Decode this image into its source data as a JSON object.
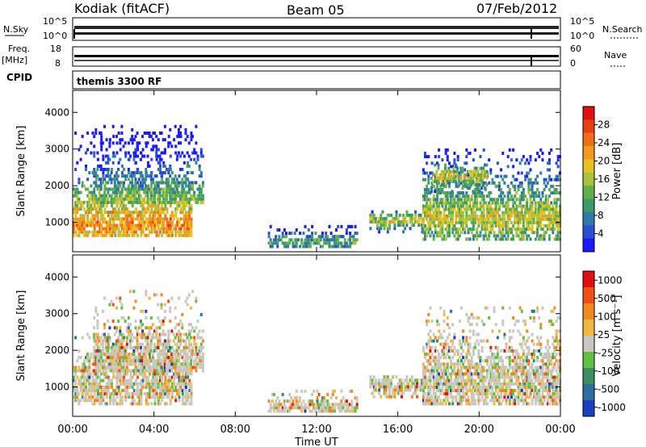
{
  "header": {
    "station": "Kodiak (fitACF)",
    "beam": "Beam 05",
    "date": "07/Feb/2012"
  },
  "top_panels": {
    "nsky_label": "N.Sky",
    "nsky_ticks": [
      "10^5",
      "10^0"
    ],
    "nsearch_label": "N.Search",
    "nsearch_ticks": [
      "10^5",
      "10^0"
    ],
    "freq_label": "Freq.",
    "freq_unit": "[MHz]",
    "freq_ticks": [
      "18",
      "8"
    ],
    "nave_label": "Nave",
    "nave_ticks": [
      "60",
      "0"
    ],
    "cpid_label": "CPID",
    "cpid_value": "themis 3300 RF"
  },
  "chart_data": [
    {
      "type": "heatmap",
      "name": "power-panel",
      "ylabel": "Slant Range [km]",
      "x_ticks": [
        "00:00",
        "04:00",
        "08:00",
        "12:00",
        "16:00",
        "20:00",
        "00:00"
      ],
      "x_range_hours": [
        0,
        24
      ],
      "y_ticks": [
        1000,
        2000,
        3000,
        4000
      ],
      "ylim": [
        200,
        4600
      ],
      "colorbar": {
        "label": "Power [dB]",
        "ticks": [
          "4",
          "8",
          "12",
          "16",
          "20",
          "24",
          "28"
        ],
        "colors": [
          "#1a1aff",
          "#2a4fd0",
          "#2f7aa8",
          "#3d9a6a",
          "#5fb04a",
          "#a8c23a",
          "#e8c020",
          "#f09a20",
          "#f07018",
          "#e84010",
          "#e01010"
        ]
      },
      "regions": [
        {
          "t0": 0.0,
          "t1": 5.8,
          "r0": 600,
          "r1": 3400,
          "core": 900,
          "level": 0.75
        },
        {
          "t0": 1.0,
          "t1": 6.4,
          "r0": 1500,
          "r1": 3600,
          "core": 1500,
          "level": 0.45
        },
        {
          "t0": 9.6,
          "t1": 14.0,
          "r0": 300,
          "r1": 900,
          "core": 420,
          "level": 0.35
        },
        {
          "t0": 14.6,
          "t1": 17.2,
          "r0": 700,
          "r1": 1300,
          "core": 1000,
          "level": 0.55
        },
        {
          "t0": 17.2,
          "t1": 24.0,
          "r0": 500,
          "r1": 3000,
          "core": 1100,
          "level": 0.55
        },
        {
          "t0": 17.6,
          "t1": 20.4,
          "r0": 1800,
          "r1": 2600,
          "core": 2200,
          "level": 0.6
        }
      ]
    },
    {
      "type": "heatmap",
      "name": "velocity-panel",
      "ylabel": "Slant Range [km]",
      "xlabel": "Time UT",
      "x_ticks": [
        "00:00",
        "04:00",
        "08:00",
        "12:00",
        "16:00",
        "20:00",
        "00:00"
      ],
      "x_range_hours": [
        0,
        24
      ],
      "y_ticks": [
        1000,
        2000,
        3000,
        4000
      ],
      "ylim": [
        200,
        4600
      ],
      "colorbar": {
        "label": "Velocity [m s⁻¹]",
        "ticks": [
          "1000",
          "500",
          "100",
          "25",
          "-25",
          "-100",
          "-500",
          "-1000"
        ],
        "colors": [
          "#1a3fc0",
          "#2f6fa0",
          "#3d8f60",
          "#60c040",
          "#c8c8c0",
          "#f0b840",
          "#f08a20",
          "#f05018",
          "#e01010"
        ]
      },
      "regions": [
        {
          "t0": 0.0,
          "t1": 5.8,
          "r0": 500,
          "r1": 2400,
          "core": 1000,
          "level": 0.5
        },
        {
          "t0": 1.0,
          "t1": 6.4,
          "r0": 1400,
          "r1": 3600,
          "core": 1700,
          "level": 0.5
        },
        {
          "t0": 9.6,
          "t1": 14.0,
          "r0": 300,
          "r1": 900,
          "core": 420,
          "level": 0.4
        },
        {
          "t0": 14.6,
          "t1": 17.2,
          "r0": 600,
          "r1": 1300,
          "core": 1000,
          "level": 0.6
        },
        {
          "t0": 17.2,
          "t1": 24.0,
          "r0": 500,
          "r1": 3200,
          "core": 1100,
          "level": 0.5
        }
      ]
    }
  ]
}
